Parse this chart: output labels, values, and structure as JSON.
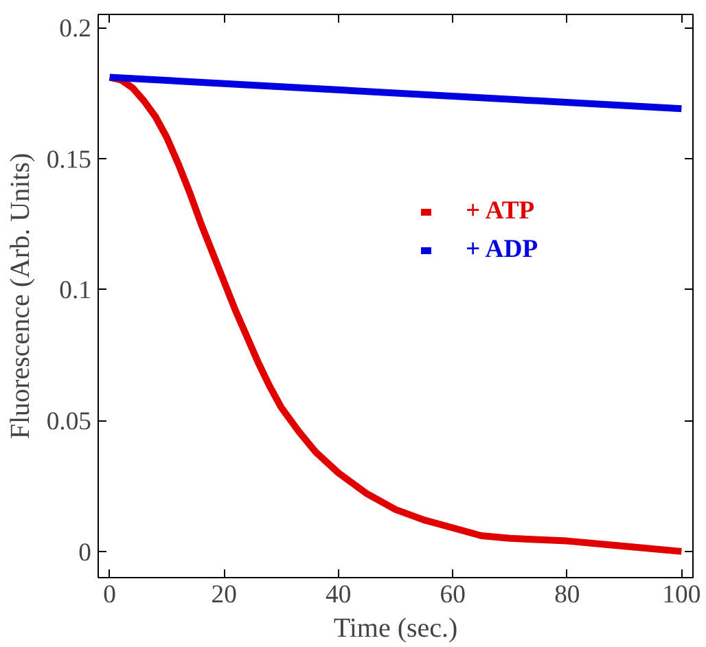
{
  "chart_data": {
    "type": "line",
    "xlabel": "Time (sec.)",
    "ylabel": "Fluorescence (Arb. Units)",
    "xlim": [
      -2,
      102
    ],
    "ylim": [
      -0.01,
      0.205
    ],
    "xticks": [
      0,
      20,
      40,
      60,
      80,
      100
    ],
    "yticks": [
      0,
      0.05,
      0.1,
      0.15,
      0.2
    ],
    "grid": false,
    "legend": "right",
    "series": [
      {
        "name": "+ ATP",
        "color": "#e00000",
        "x": [
          0,
          2,
          4,
          6,
          8,
          10,
          12,
          14,
          16,
          18,
          20,
          22,
          24,
          26,
          28,
          30,
          33,
          36,
          40,
          45,
          50,
          55,
          60,
          65,
          70,
          80,
          90,
          100
        ],
        "values": [
          0.181,
          0.18,
          0.177,
          0.172,
          0.166,
          0.158,
          0.148,
          0.137,
          0.125,
          0.114,
          0.103,
          0.092,
          0.082,
          0.072,
          0.063,
          0.055,
          0.046,
          0.038,
          0.03,
          0.022,
          0.016,
          0.012,
          0.009,
          0.006,
          0.005,
          0.004,
          0.002,
          0.0
        ]
      },
      {
        "name": "+ ADP",
        "color": "#0000e0",
        "x": [
          0,
          25,
          50,
          75,
          100
        ],
        "values": [
          0.181,
          0.178,
          0.175,
          0.172,
          0.169
        ]
      }
    ]
  }
}
